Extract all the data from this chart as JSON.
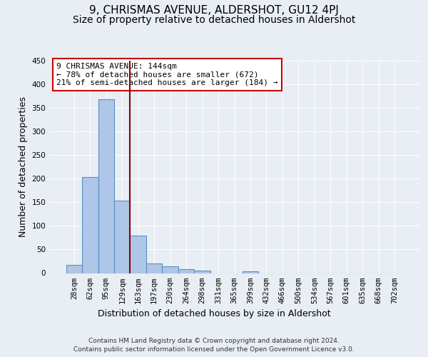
{
  "title": "9, CHRISMAS AVENUE, ALDERSHOT, GU12 4PJ",
  "subtitle": "Size of property relative to detached houses in Aldershot",
  "xlabel": "Distribution of detached houses by size in Aldershot",
  "ylabel": "Number of detached properties",
  "footer_line1": "Contains HM Land Registry data © Crown copyright and database right 2024.",
  "footer_line2": "Contains public sector information licensed under the Open Government Licence v3.0.",
  "bar_labels": [
    "28sqm",
    "62sqm",
    "95sqm",
    "129sqm",
    "163sqm",
    "197sqm",
    "230sqm",
    "264sqm",
    "298sqm",
    "331sqm",
    "365sqm",
    "399sqm",
    "432sqm",
    "466sqm",
    "500sqm",
    "534sqm",
    "567sqm",
    "601sqm",
    "635sqm",
    "668sqm",
    "702sqm"
  ],
  "bar_values": [
    18,
    203,
    368,
    153,
    79,
    21,
    15,
    8,
    6,
    0,
    0,
    4,
    0,
    0,
    0,
    0,
    0,
    0,
    0,
    0,
    0
  ],
  "bar_color": "#aec6e8",
  "bar_edge_color": "#5a8fc2",
  "vline_color": "#8b0000",
  "annotation_text": "9 CHRISMAS AVENUE: 144sqm\n← 78% of detached houses are smaller (672)\n21% of semi-detached houses are larger (184) →",
  "annotation_box_color": "#ffffff",
  "annotation_box_edge_color": "#cc0000",
  "ylim": [
    0,
    450
  ],
  "yticks": [
    0,
    50,
    100,
    150,
    200,
    250,
    300,
    350,
    400,
    450
  ],
  "background_color": "#e8eef4",
  "plot_background_color": "#e8eef4",
  "grid_color": "#ffffff",
  "title_fontsize": 11,
  "subtitle_fontsize": 10,
  "tick_fontsize": 7.5,
  "ylabel_fontsize": 9,
  "xlabel_fontsize": 9,
  "footer_fontsize": 6.5,
  "annotation_fontsize": 8
}
